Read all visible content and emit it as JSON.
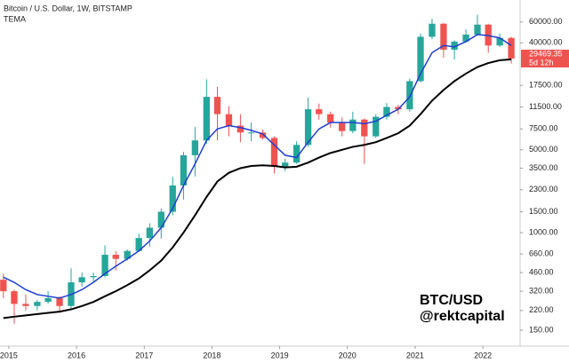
{
  "chart_data": {
    "type": "candlestick",
    "title": "Bitcoin / U.S. Dollar, 1W, BITSTAMP",
    "indicator": "TEMA",
    "watermark": [
      "BTC/USD",
      "@rektcapital"
    ],
    "log_scale": true,
    "grid": false,
    "up_color": "#26a69a",
    "down_color": "#ef5350",
    "xlim": [
      2014.87,
      2022.55
    ],
    "xticks": [
      2015,
      2016,
      2017,
      2018,
      2019,
      2020,
      2021,
      2022
    ],
    "ylim": [
      110,
      92000
    ],
    "yticks": [
      {
        "value": 60000,
        "label": "60000.00"
      },
      {
        "value": 40000,
        "label": "40000.00"
      },
      {
        "value": 17500,
        "label": "17500.00"
      },
      {
        "value": 11500,
        "label": "11500.00"
      },
      {
        "value": 7500,
        "label": "7500.00"
      },
      {
        "value": 5000,
        "label": "5000.00"
      },
      {
        "value": 3500,
        "label": "3500.00"
      },
      {
        "value": 2300,
        "label": "2300.00"
      },
      {
        "value": 1500,
        "label": "1500.00"
      },
      {
        "value": 1000,
        "label": "1000.00"
      },
      {
        "value": 660,
        "label": "660.00"
      },
      {
        "value": 460,
        "label": "460.00"
      },
      {
        "value": 320,
        "label": "320.00"
      },
      {
        "value": 220,
        "label": "220.00"
      },
      {
        "value": 150,
        "label": "150.00"
      }
    ],
    "last_price": 29469.35,
    "last_price_color": "#ef5350",
    "countdown": "5d 12h",
    "x": [
      2014.92,
      2015.08,
      2015.25,
      2015.42,
      2015.58,
      2015.75,
      2015.92,
      2016.08,
      2016.25,
      2016.42,
      2016.58,
      2016.75,
      2016.92,
      2017.08,
      2017.25,
      2017.42,
      2017.58,
      2017.75,
      2017.92,
      2018.08,
      2018.25,
      2018.42,
      2018.58,
      2018.75,
      2018.92,
      2019.08,
      2019.25,
      2019.42,
      2019.58,
      2019.75,
      2019.92,
      2020.08,
      2020.25,
      2020.42,
      2020.58,
      2020.75,
      2020.92,
      2021.08,
      2021.25,
      2021.42,
      2021.58,
      2021.75,
      2021.92,
      2022.08,
      2022.25,
      2022.42
    ],
    "open": [
      400,
      320,
      250,
      240,
      260,
      280,
      240,
      380,
      420,
      430,
      650,
      600,
      700,
      900,
      1100,
      1500,
      2500,
      4500,
      6000,
      14000,
      10000,
      8000,
      7000,
      7000,
      6300,
      3600,
      3900,
      5500,
      11000,
      10000,
      8500,
      7200,
      9000,
      6500,
      9500,
      11500,
      11000,
      19000,
      45000,
      58000,
      35000,
      41000,
      47000,
      57000,
      38000,
      44000
    ],
    "high": [
      450,
      330,
      300,
      270,
      320,
      290,
      500,
      460,
      460,
      780,
      700,
      720,
      980,
      1200,
      1600,
      2950,
      4800,
      7800,
      19700,
      17000,
      11700,
      10000,
      8500,
      7400,
      6500,
      4200,
      5900,
      13800,
      12300,
      10500,
      9400,
      10500,
      9200,
      10000,
      12400,
      12000,
      19900,
      48000,
      64000,
      59000,
      42000,
      52000,
      69000,
      58000,
      48000,
      45000
    ],
    "low": [
      280,
      170,
      220,
      220,
      250,
      210,
      230,
      350,
      380,
      420,
      480,
      580,
      690,
      760,
      890,
      1400,
      1900,
      2980,
      5600,
      6000,
      6500,
      5800,
      5900,
      6100,
      3150,
      3300,
      3800,
      5300,
      9000,
      7700,
      6500,
      6900,
      3800,
      6300,
      9000,
      10000,
      10500,
      18500,
      43000,
      30000,
      29000,
      40000,
      46000,
      33000,
      37000,
      26700
    ],
    "close": [
      320,
      250,
      240,
      260,
      280,
      240,
      380,
      420,
      430,
      650,
      600,
      700,
      900,
      1100,
      1500,
      2500,
      4500,
      6000,
      14000,
      10000,
      8000,
      7000,
      7000,
      6300,
      3600,
      3900,
      5500,
      11000,
      10000,
      8500,
      7200,
      9000,
      6500,
      9500,
      11500,
      11000,
      19000,
      45000,
      58000,
      35000,
      41000,
      47000,
      57000,
      38000,
      44000,
      29500
    ],
    "series": [
      {
        "color": "#1e3fd0",
        "values": [
          420,
          380,
          330,
          300,
          290,
          280,
          300,
          330,
          380,
          450,
          520,
          600,
          700,
          850,
          1100,
          1600,
          2500,
          3800,
          6000,
          7500,
          8000,
          7700,
          7300,
          6800,
          5500,
          4500,
          4300,
          5800,
          7500,
          8500,
          8500,
          8500,
          8300,
          8700,
          9800,
          11000,
          14000,
          22000,
          33000,
          38000,
          37000,
          41000,
          47000,
          46000,
          44000,
          38000
        ]
      },
      {
        "color": "#000000",
        "values": [
          190,
          195,
          200,
          205,
          210,
          215,
          225,
          240,
          260,
          290,
          320,
          360,
          410,
          480,
          580,
          750,
          1000,
          1400,
          2000,
          2700,
          3200,
          3500,
          3650,
          3700,
          3650,
          3550,
          3600,
          3900,
          4300,
          4700,
          5000,
          5300,
          5500,
          5800,
          6300,
          6900,
          8000,
          10000,
          13000,
          16000,
          19000,
          22000,
          25000,
          27000,
          28500,
          29000
        ]
      }
    ]
  }
}
